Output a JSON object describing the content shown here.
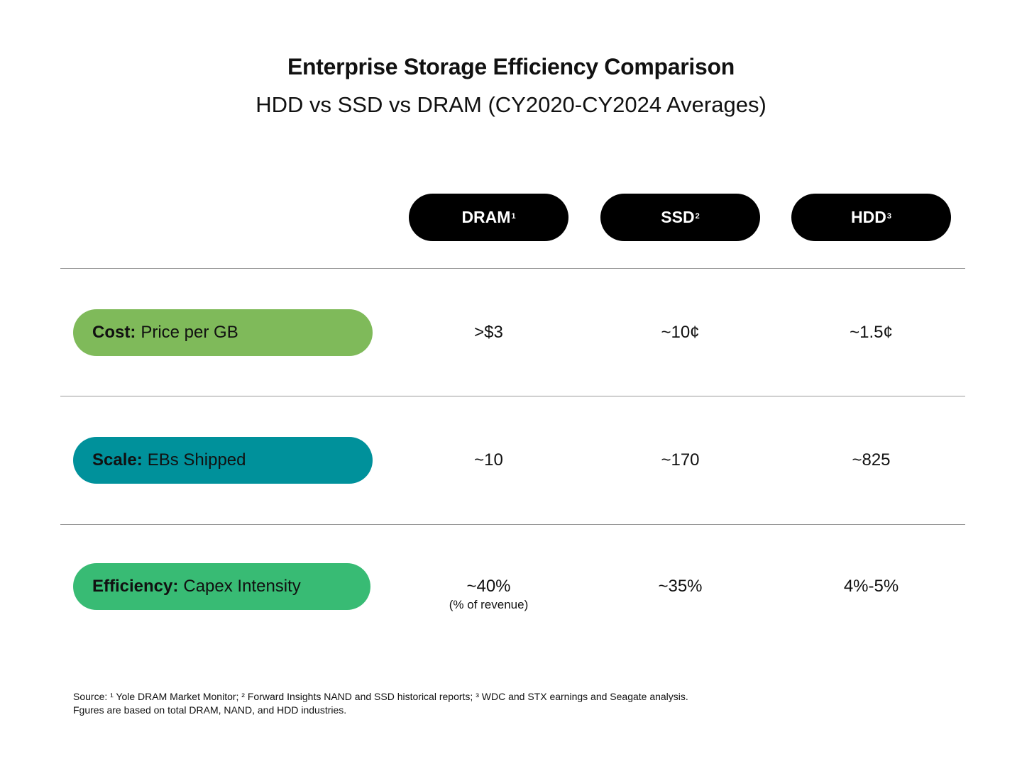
{
  "chart_data": {
    "type": "table",
    "title": "Enterprise Storage Efficiency Comparison",
    "subtitle": "HDD vs SSD vs DRAM (CY2020-CY2024 Averages)",
    "columns": [
      {
        "label": "DRAM",
        "footnote": "1"
      },
      {
        "label": "SSD",
        "footnote": "2"
      },
      {
        "label": "HDD",
        "footnote": "3"
      }
    ],
    "rows": [
      {
        "category": "Cost:",
        "metric": "Price per GB",
        "color": "#7fba5a",
        "values": [
          ">$3",
          "~10¢",
          "~1.5¢"
        ],
        "notes": [
          "",
          "",
          ""
        ]
      },
      {
        "category": "Scale:",
        "metric": "EBs Shipped",
        "color": "#00919b",
        "values": [
          "~10",
          "~170",
          "~825"
        ],
        "notes": [
          "",
          "",
          ""
        ]
      },
      {
        "category": "Efficiency:",
        "metric": "Capex Intensity",
        "color": "#38bb74",
        "values": [
          "~40%",
          "~35%",
          "4%-5%"
        ],
        "notes": [
          "(% of revenue)",
          "",
          ""
        ]
      }
    ]
  },
  "footer": {
    "source_line": "Source: ¹ Yole DRAM Market Monitor; ² Forward Insights NAND and SSD historical reports; ³ WDC and STX earnings and Seagate analysis.",
    "note_line": "Fgures are based on total DRAM, NAND, and HDD industries."
  }
}
